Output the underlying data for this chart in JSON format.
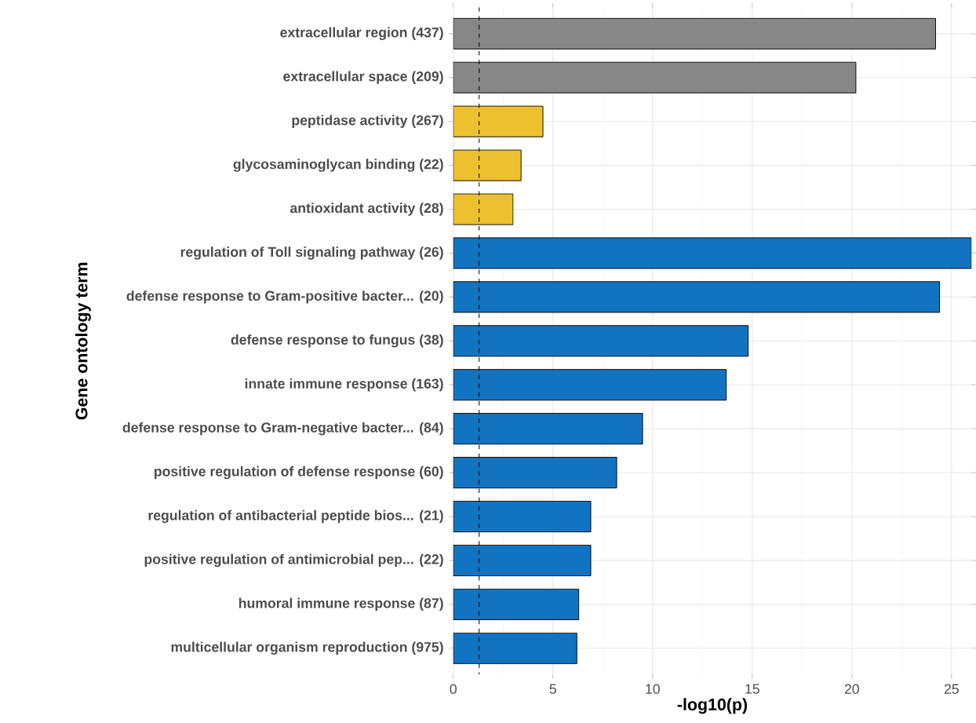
{
  "chart_data": {
    "type": "bar",
    "orientation": "horizontal",
    "xlabel": "-log10(p)",
    "ylabel": "Gene ontology term",
    "categories": [
      "extracellular region (437)",
      "extracellular space (209)",
      "peptidase activity (267)",
      "glycosaminoglycan binding (22)",
      "antioxidant activity (28)",
      "regulation of Toll signaling pathway (26)",
      "defense response to Gram-positive bacter... (20)",
      "defense response to fungus (38)",
      "innate immune response (163)",
      "defense response to Gram-negative bacter... (84)",
      "positive regulation of defense response (60)",
      "regulation of antibacterial peptide bios... (21)",
      "positive regulation of antimicrobial pep... (22)",
      "humoral immune response (87)",
      "multicellular organism reproduction (975)"
    ],
    "values": [
      24.2,
      20.2,
      4.5,
      3.4,
      3.0,
      26.0,
      24.4,
      14.8,
      13.7,
      9.5,
      8.2,
      6.9,
      6.9,
      6.3,
      6.2
    ],
    "colors": [
      "#878787",
      "#878787",
      "#ecc02e",
      "#ecc02e",
      "#ecc02e",
      "#1273c1",
      "#1273c1",
      "#1273c1",
      "#1273c1",
      "#1273c1",
      "#1273c1",
      "#1273c1",
      "#1273c1",
      "#1273c1",
      "#1273c1"
    ],
    "xlim": [
      0,
      26.0
    ],
    "xticks": [
      0,
      5,
      10,
      15,
      20,
      25
    ],
    "grid": true,
    "ref_lines": [
      {
        "axis": "x",
        "value": 1.3,
        "line_style": "dashed",
        "color": "#000000"
      }
    ]
  }
}
